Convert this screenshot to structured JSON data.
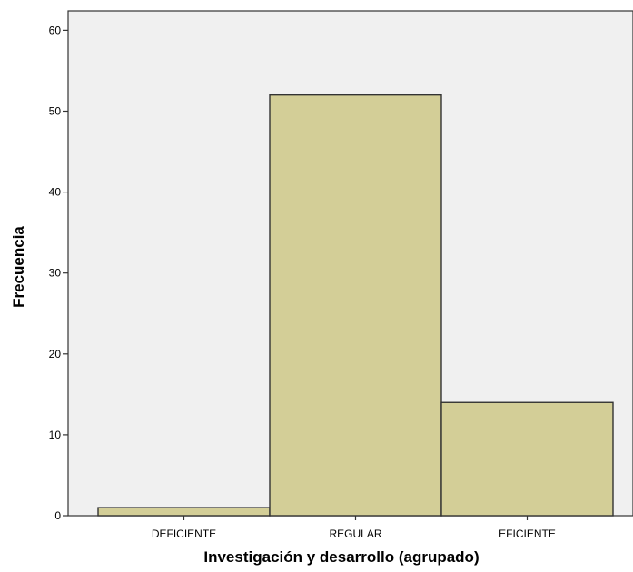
{
  "chart_data": {
    "type": "bar",
    "categories": [
      "DEFICIENTE",
      "REGULAR",
      "EFICIENTE"
    ],
    "values": [
      1,
      52,
      14
    ],
    "xlabel": "Investigación y desarrollo (agrupado)",
    "ylabel": "Frecuencia",
    "ylim": [
      0,
      60
    ],
    "yticks": [
      0,
      10,
      20,
      30,
      40,
      50,
      60
    ],
    "grid": false,
    "colors": {
      "plot_background": "#f0f0f0",
      "bar_fill": "#d3ce97",
      "bar_stroke": "#333333",
      "axis": "#333333"
    }
  }
}
